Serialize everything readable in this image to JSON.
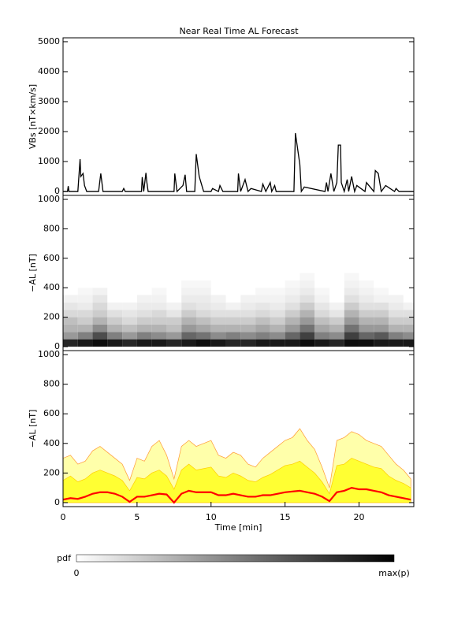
{
  "title": "Near Real Time AL Forecast",
  "chart_data": [
    {
      "type": "line",
      "ylabel": "VBs [nT×km/s]",
      "xlim": [
        0,
        23.7
      ],
      "ylim": [
        -130,
        5130
      ],
      "yticks": [
        0,
        1000,
        2000,
        3000,
        4000,
        5000
      ],
      "color": "#000000",
      "x": [
        0,
        0.3,
        0.35,
        0.4,
        1.0,
        1.15,
        1.2,
        1.35,
        1.45,
        1.6,
        2.4,
        2.55,
        2.7,
        4.0,
        4.1,
        4.2,
        5.3,
        5.35,
        5.45,
        5.6,
        5.65,
        5.75,
        7.5,
        7.55,
        7.7,
        8.1,
        8.25,
        8.35,
        8.9,
        9.0,
        9.2,
        9.5,
        10.0,
        10.1,
        10.5,
        10.6,
        10.8,
        11.8,
        11.85,
        12.0,
        12.3,
        12.5,
        12.7,
        13.4,
        13.5,
        13.7,
        14.0,
        14.1,
        14.3,
        14.4,
        15.6,
        15.7,
        16.0,
        16.1,
        16.3,
        17.7,
        17.8,
        17.9,
        18.1,
        18.3,
        18.5,
        18.6,
        18.75,
        18.8,
        19.0,
        19.2,
        19.3,
        19.5,
        19.7,
        19.85,
        20.4,
        20.5,
        21.0,
        21.1,
        21.3,
        21.5,
        21.8,
        22.4,
        22.5,
        22.7,
        23.7
      ],
      "values": [
        0,
        0,
        180,
        0,
        0,
        1080,
        500,
        600,
        200,
        0,
        0,
        600,
        0,
        0,
        100,
        0,
        0,
        480,
        0,
        620,
        350,
        0,
        0,
        600,
        0,
        200,
        560,
        0,
        0,
        1250,
        500,
        0,
        0,
        100,
        0,
        200,
        0,
        0,
        600,
        0,
        400,
        0,
        100,
        0,
        250,
        0,
        300,
        0,
        200,
        0,
        0,
        1950,
        900,
        0,
        150,
        0,
        300,
        0,
        600,
        0,
        300,
        1550,
        1550,
        300,
        0,
        400,
        0,
        500,
        0,
        200,
        0,
        300,
        0,
        700,
        600,
        0,
        200,
        0,
        100,
        0,
        0
      ]
    },
    {
      "type": "heatmap",
      "ylabel": "−AL [nT]",
      "xlim": [
        0,
        23.7
      ],
      "ylim": [
        -27,
        1027
      ],
      "yticks": [
        0,
        200,
        400,
        600,
        800,
        1000
      ],
      "xbins": [
        0,
        1,
        2,
        3,
        4,
        5,
        6,
        7,
        8,
        9,
        10,
        11,
        12,
        13,
        14,
        15,
        16,
        17,
        18,
        19,
        20,
        21,
        22,
        23,
        24
      ],
      "ybins": [
        0,
        50,
        100,
        150,
        200,
        250,
        300,
        350,
        400,
        450,
        500
      ],
      "z": [
        [
          0.85,
          0.9,
          0.95,
          0.9,
          0.85,
          0.9,
          0.9,
          0.85,
          0.9,
          0.95,
          0.9,
          0.85,
          0.85,
          0.9,
          0.9,
          0.9,
          0.95,
          0.9,
          0.85,
          0.95,
          0.95,
          0.9,
          0.9,
          0.9
        ],
        [
          0.4,
          0.5,
          0.7,
          0.5,
          0.4,
          0.5,
          0.45,
          0.4,
          0.6,
          0.55,
          0.45,
          0.5,
          0.45,
          0.5,
          0.45,
          0.6,
          0.75,
          0.5,
          0.45,
          0.75,
          0.6,
          0.65,
          0.5,
          0.45
        ],
        [
          0.3,
          0.3,
          0.45,
          0.3,
          0.25,
          0.3,
          0.3,
          0.25,
          0.4,
          0.35,
          0.3,
          0.3,
          0.3,
          0.35,
          0.3,
          0.4,
          0.55,
          0.35,
          0.3,
          0.55,
          0.4,
          0.4,
          0.3,
          0.3
        ],
        [
          0.25,
          0.2,
          0.3,
          0.2,
          0.15,
          0.2,
          0.2,
          0.2,
          0.3,
          0.25,
          0.2,
          0.2,
          0.2,
          0.25,
          0.2,
          0.3,
          0.4,
          0.25,
          0.2,
          0.4,
          0.3,
          0.3,
          0.2,
          0.2
        ],
        [
          0.15,
          0.15,
          0.2,
          0.12,
          0.1,
          0.12,
          0.15,
          0.1,
          0.2,
          0.15,
          0.12,
          0.12,
          0.12,
          0.15,
          0.12,
          0.2,
          0.3,
          0.15,
          0.1,
          0.3,
          0.2,
          0.2,
          0.12,
          0.12
        ],
        [
          0.1,
          0.08,
          0.15,
          0.05,
          0.05,
          0.08,
          0.08,
          0.05,
          0.12,
          0.1,
          0.08,
          0.05,
          0.08,
          0.1,
          0.08,
          0.12,
          0.2,
          0.1,
          0.05,
          0.2,
          0.12,
          0.12,
          0.08,
          0.05
        ],
        [
          0.05,
          0.05,
          0.1,
          0,
          0,
          0.05,
          0.05,
          0,
          0.08,
          0.08,
          0.05,
          0,
          0.05,
          0.05,
          0.05,
          0.08,
          0.12,
          0.05,
          0,
          0.12,
          0.08,
          0.05,
          0.05,
          0
        ],
        [
          0,
          0.03,
          0.05,
          0,
          0,
          0,
          0.03,
          0,
          0.05,
          0.05,
          0,
          0,
          0,
          0.03,
          0.03,
          0.05,
          0.08,
          0.03,
          0,
          0.08,
          0.05,
          0.03,
          0,
          0
        ],
        [
          0,
          0,
          0,
          0,
          0,
          0,
          0,
          0,
          0.03,
          0.03,
          0,
          0,
          0,
          0,
          0,
          0.03,
          0.05,
          0,
          0,
          0.05,
          0.03,
          0,
          0,
          0
        ],
        [
          0,
          0,
          0,
          0,
          0,
          0,
          0,
          0,
          0,
          0,
          0,
          0,
          0,
          0,
          0,
          0,
          0.03,
          0,
          0,
          0.03,
          0,
          0,
          0,
          0
        ]
      ],
      "colorbar": {
        "label": "pdf",
        "min_label": "0",
        "max_label": "max(p)"
      }
    },
    {
      "type": "area",
      "ylabel": "−AL [nT]",
      "xlabel": "Time [min]",
      "xlim": [
        0,
        23.7
      ],
      "ylim": [
        -27,
        1027
      ],
      "yticks": [
        0,
        200,
        400,
        600,
        800,
        1000
      ],
      "xticks": [
        0,
        5,
        10,
        15,
        20
      ],
      "x": [
        0,
        0.5,
        1,
        1.5,
        2,
        2.5,
        3,
        3.5,
        4,
        4.5,
        5,
        5.5,
        6,
        6.5,
        7,
        7.5,
        8,
        8.5,
        9,
        9.5,
        10,
        10.5,
        11,
        11.5,
        12,
        12.5,
        13,
        13.5,
        14,
        14.5,
        15,
        15.5,
        16,
        16.5,
        17,
        17.5,
        18,
        18.5,
        19,
        19.5,
        20,
        20.5,
        21,
        21.5,
        22,
        22.5,
        23,
        23.5
      ],
      "series": [
        {
          "color": "#ffffaa",
          "stroke": "#ff9933",
          "style": "area",
          "values": [
            300,
            320,
            260,
            280,
            350,
            380,
            340,
            300,
            260,
            150,
            300,
            280,
            380,
            420,
            320,
            160,
            380,
            420,
            380,
            400,
            420,
            320,
            300,
            340,
            320,
            260,
            240,
            300,
            340,
            380,
            420,
            440,
            500,
            420,
            360,
            240,
            100,
            420,
            440,
            480,
            460,
            420,
            400,
            380,
            320,
            260,
            220,
            160
          ]
        },
        {
          "color": "#ffff33",
          "stroke": "#ffcc00",
          "style": "area",
          "values": [
            150,
            180,
            140,
            160,
            200,
            220,
            200,
            180,
            150,
            80,
            170,
            160,
            200,
            220,
            180,
            90,
            220,
            260,
            220,
            230,
            240,
            180,
            170,
            200,
            180,
            150,
            140,
            170,
            190,
            220,
            250,
            260,
            280,
            240,
            200,
            140,
            60,
            250,
            260,
            300,
            280,
            260,
            240,
            230,
            180,
            150,
            130,
            100
          ]
        },
        {
          "color": "#ff0000",
          "style": "line",
          "values": [
            20,
            30,
            25,
            40,
            60,
            70,
            70,
            60,
            40,
            5,
            40,
            40,
            50,
            60,
            55,
            0,
            60,
            80,
            70,
            70,
            70,
            50,
            50,
            60,
            50,
            40,
            40,
            50,
            50,
            60,
            70,
            75,
            80,
            70,
            60,
            40,
            10,
            70,
            80,
            100,
            90,
            90,
            80,
            70,
            50,
            40,
            30,
            20
          ]
        }
      ]
    }
  ]
}
